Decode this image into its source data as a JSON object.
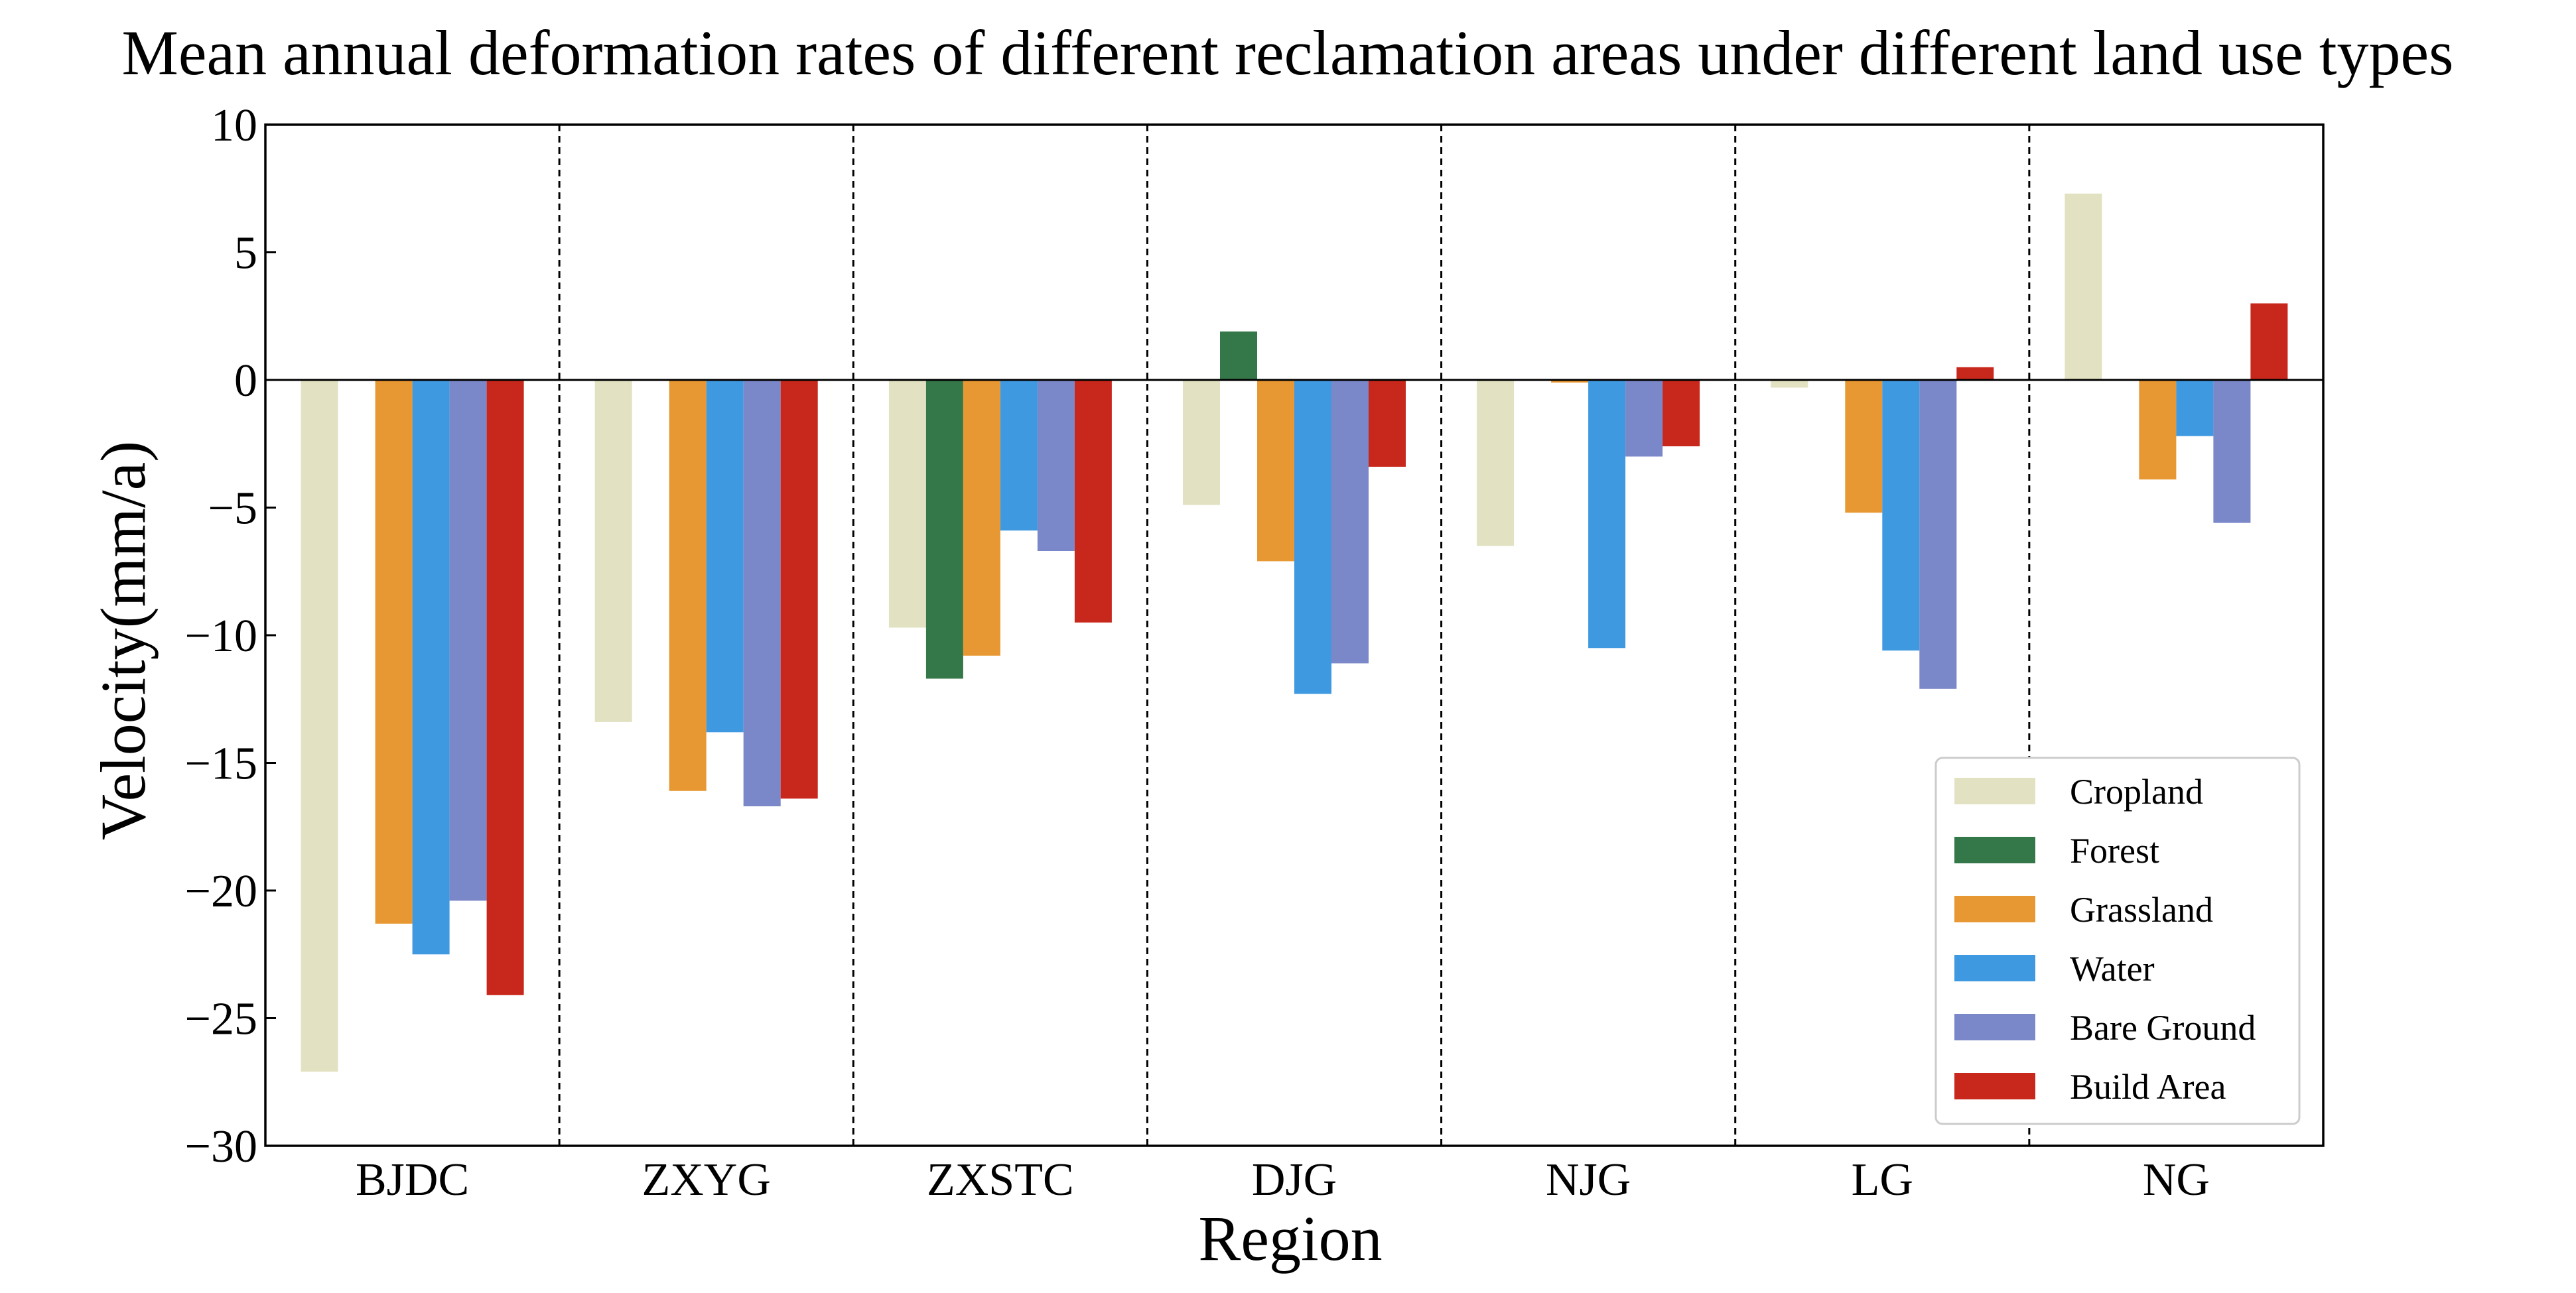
{
  "chart_data": {
    "type": "bar",
    "title": "Mean annual deformation rates of different reclamation areas under different land use types",
    "xlabel": "Region",
    "ylabel": "Velocity(mm/a)",
    "ylim": [
      -30,
      10
    ],
    "yticks": [
      10,
      5,
      0,
      -5,
      -10,
      -15,
      -20,
      -25,
      -30
    ],
    "ytick_labels": [
      "10",
      "5",
      "0",
      "−5",
      "−10",
      "−15",
      "−20",
      "−25",
      "−30"
    ],
    "categories": [
      "BJDC",
      "ZXYG",
      "ZXSTC",
      "DJG",
      "NJG",
      "LG",
      "NG"
    ],
    "zero_line": true,
    "group_separators": "dashed vertical lines between regions",
    "legend_position": "lower-right",
    "missing_note": "null means no bar is drawn for that land use type in that region",
    "series": [
      {
        "name": "Cropland",
        "color": "#e2e2c3",
        "values": [
          -27.1,
          -13.4,
          -9.7,
          -4.9,
          -6.5,
          -0.3,
          7.3
        ]
      },
      {
        "name": "Forest",
        "color": "#34784a",
        "values": [
          null,
          null,
          -11.7,
          1.9,
          null,
          null,
          null
        ]
      },
      {
        "name": "Grassland",
        "color": "#e89832",
        "values": [
          -21.3,
          -16.1,
          -10.8,
          -7.1,
          -0.1,
          -5.2,
          -3.9
        ]
      },
      {
        "name": "Water",
        "color": "#3f99e0",
        "values": [
          -22.5,
          -13.8,
          -5.9,
          -12.3,
          -10.5,
          -10.6,
          -2.2
        ]
      },
      {
        "name": "Bare Ground",
        "color": "#7a87c8",
        "values": [
          -20.4,
          -16.7,
          -6.7,
          -11.1,
          -3.0,
          -12.1,
          -5.6
        ]
      },
      {
        "name": "Build Area",
        "color": "#c8281c",
        "values": [
          -24.1,
          -16.4,
          -9.5,
          -3.4,
          -2.6,
          0.5,
          3.0
        ]
      }
    ]
  }
}
